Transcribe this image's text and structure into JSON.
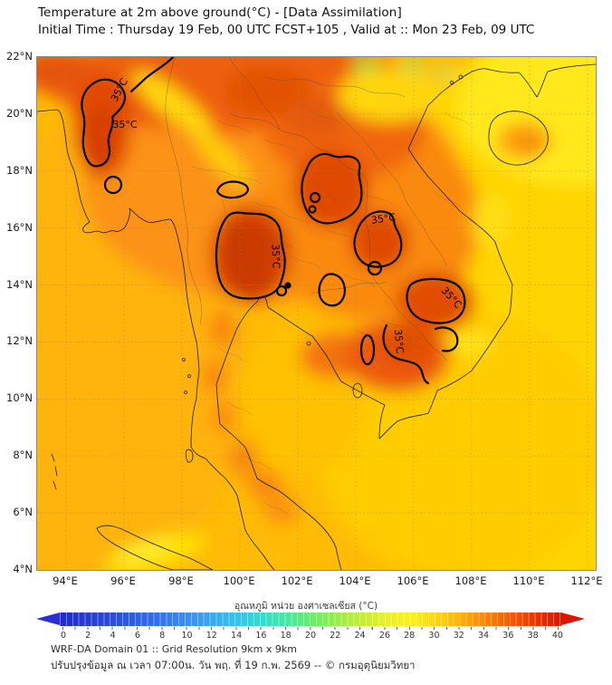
{
  "header": {
    "title": "Temperature at 2m above ground(°C) - [Data Assimilation]",
    "subtitle": "Initial Time : Thursday 19 Feb, 00 UTC FCST+105 , Valid at :: Mon 23 Feb, 09 UTC"
  },
  "map": {
    "lat_ticks": [
      "22°N",
      "20°N",
      "18°N",
      "16°N",
      "14°N",
      "12°N",
      "10°N",
      "8°N",
      "6°N",
      "4°N"
    ],
    "lon_ticks": [
      "94°E",
      "96°E",
      "98°E",
      "100°E",
      "102°E",
      "104°E",
      "106°E",
      "108°E",
      "110°E",
      "112°E"
    ],
    "contour_label": "35°C"
  },
  "colorbar": {
    "label": "อุณหภูมิ หน่วย องศาเซลเซียส (°C)",
    "ticks": [
      "0",
      "2",
      "4",
      "6",
      "8",
      "10",
      "12",
      "14",
      "16",
      "18",
      "20",
      "22",
      "24",
      "26",
      "28",
      "30",
      "32",
      "34",
      "36",
      "38",
      "40"
    ],
    "min": 0,
    "max": 40,
    "unit": "°C",
    "scale_colors": {
      "0": "#2228CE",
      "8": "#3372EC",
      "14": "#32C2EC",
      "18": "#44E8A4",
      "22": "#94EE48",
      "26": "#E8F028",
      "30": "#FFD810",
      "34": "#FF8404",
      "38": "#E83400",
      "40": "#D81800"
    }
  },
  "footer": {
    "line1": "WRF-DA Domain 01 :: Grid Resolution 9km x 9km",
    "line2": "ปรับปรุงข้อมูล ณ เวลา 07:00น. วัน พฤ. ที่ 19 ก.พ. 2569 -- © กรมอุตุนิยมวิทยา"
  },
  "chart_data": {
    "type": "heatmap",
    "title": "Temperature at 2m above ground(°C) - [Data Assimilation]",
    "subtitle": "Initial Time : Thursday 19 Feb, 00 UTC FCST+105 , Valid at :: Mon 23 Feb, 09 UTC",
    "xlabel_ticks": [
      "94°E",
      "96°E",
      "98°E",
      "100°E",
      "102°E",
      "104°E",
      "106°E",
      "108°E",
      "110°E",
      "112°E"
    ],
    "ylabel_ticks": [
      "22°N",
      "20°N",
      "18°N",
      "16°N",
      "14°N",
      "12°N",
      "10°N",
      "8°N",
      "6°N",
      "4°N"
    ],
    "x_range_deg_east": [
      93,
      112.3
    ],
    "y_range_deg_north": [
      4,
      22
    ],
    "colorbar_range_celsius": [
      0,
      40
    ],
    "colorbar_label": "อุณหภูมิ หน่วย องศาเซลเซียส (°C)",
    "contour_level_celsius": 35,
    "contour_label": "35°C",
    "hot_regions_above_35C": [
      {
        "area": "central Myanmar",
        "approx_lon": 96,
        "approx_lat": 20
      },
      {
        "area": "central Thailand",
        "approx_lon": 100.5,
        "approx_lat": 15
      },
      {
        "area": "northeast Thailand",
        "approx_lon": 102.5,
        "approx_lat": 17.5
      },
      {
        "area": "central Laos / Vietnam border",
        "approx_lon": 104.5,
        "approx_lat": 16
      },
      {
        "area": "southern Laos",
        "approx_lon": 106.5,
        "approx_lat": 13.8
      },
      {
        "area": "Cambodia / Mekong",
        "approx_lon": 105.5,
        "approx_lat": 12
      }
    ],
    "sea_surface_apparent_celsius": {
      "bay_of_bengal": 30,
      "gulf_of_thailand": 29,
      "south_china_sea": 28
    },
    "grid": true,
    "legend_position": "bottom colorbar with arrow ends"
  }
}
